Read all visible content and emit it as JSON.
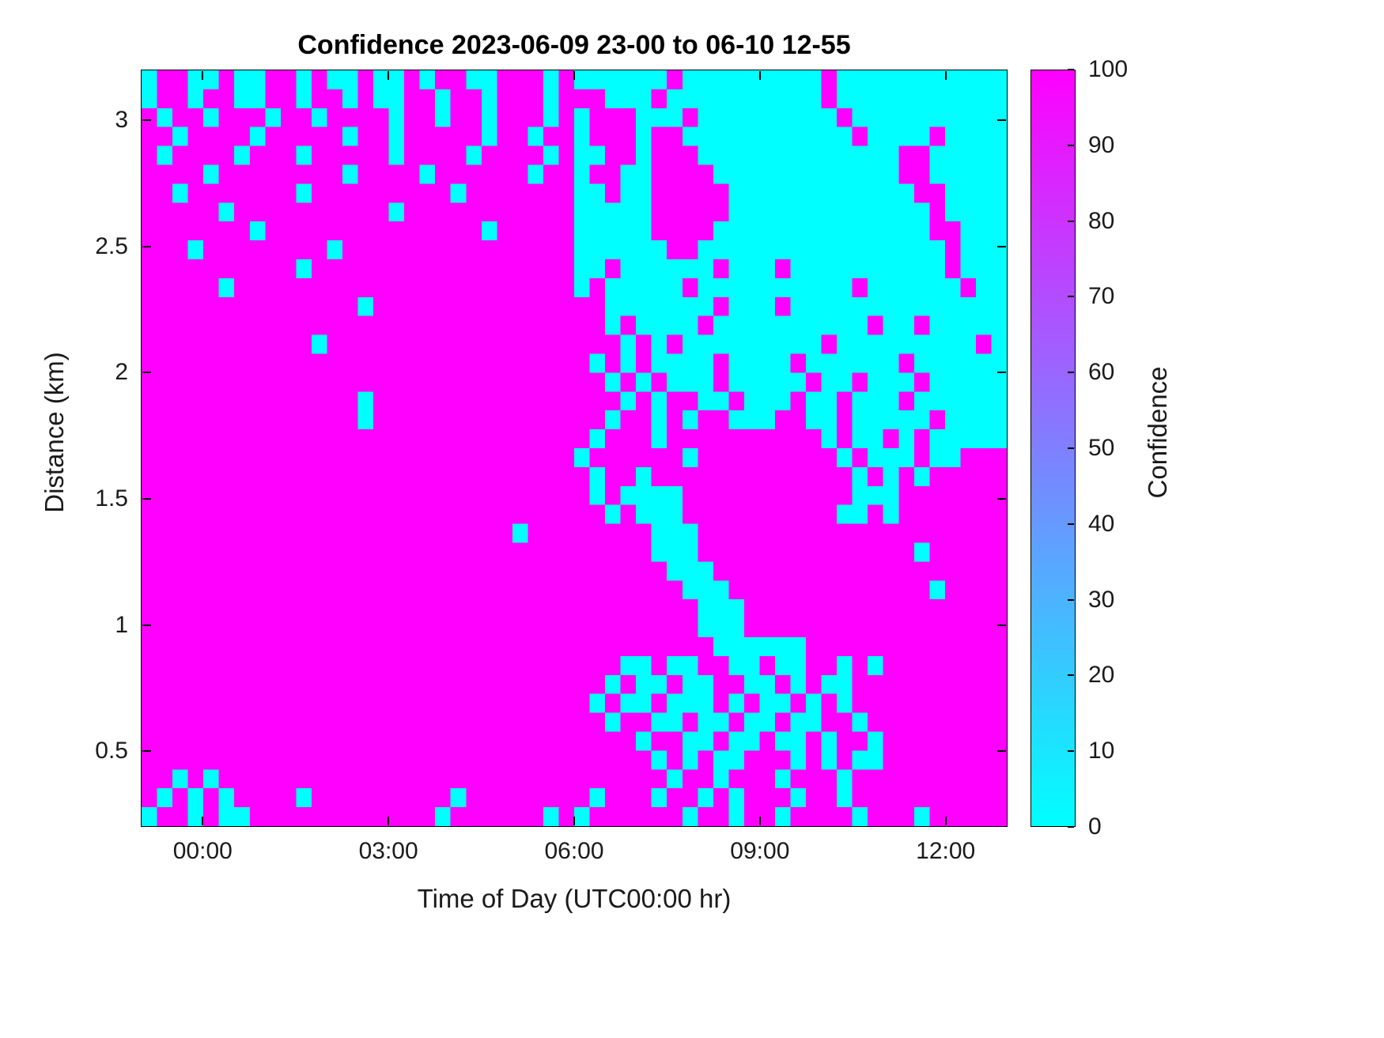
{
  "figure": {
    "background": "#FFFFFF"
  },
  "chart_data": {
    "type": "heatmap",
    "title": "Confidence 2023-06-09 23-00 to 06-10 12-55",
    "xlabel": "Time of Day (UTC00:00 hr)",
    "ylabel": "Distance (km)",
    "x_range_hours": [
      -1,
      13
    ],
    "x_tick_hours": [
      0,
      3,
      6,
      9,
      12
    ],
    "x_tick_labels": [
      "00:00",
      "03:00",
      "06:00",
      "09:00",
      "12:00"
    ],
    "y_range_km": [
      0.2,
      3.2
    ],
    "y_tick_values": [
      0.5,
      1,
      1.5,
      2,
      2.5,
      3
    ],
    "y_tick_labels": [
      "0.5",
      "1",
      "1.5",
      "2",
      "2.5",
      "3"
    ],
    "colorbar": {
      "label": "Confidence",
      "min": 0,
      "max": 100,
      "ticks": [
        0,
        10,
        20,
        30,
        40,
        50,
        60,
        70,
        80,
        90,
        100
      ],
      "colormap": "cool",
      "min_color": "#00FFFF",
      "max_color": "#FF00FF"
    },
    "value_map": {
      "0": 0,
      "1": 100
    },
    "n_cols": 56,
    "n_rows": 40,
    "grid_rows_top_to_bottom": [
      "01100100110100100101100111010000001000000000100000000000",
      "01101100110110100110110111011100010000000000100000000000",
      "10110111011011110110110111010111000100000000010000000000",
      "11011110111110110111110110110111011000000000001000010000",
      "10111101110111110111101111010011011100000000000001100000",
      "11110111111110111101111110110110011110000000000001100000",
      "11011111110111111111011111110010011111000000000000110000",
      "11111011111111110111111111110000011111000000000000010000",
      "11111110111111111111110111110000011110000000000000011000",
      "11101111111101111111111111110000001100000000000000001000",
      "11111111110111111111111111110010000001000100000000001000",
      "11111011111111111111111111110100000100000000001000000100",
      "11111111111111011111111111111100000001000100000000000000",
      "11111111111111111111111111111101000010000000000100100000",
      "11111111111011111111111111111110101000000000100000000010",
      "11111111111111111111111111111010100001000010000001000000",
      "11111111111111111111111111111101010001000001001000100000",
      "11111111111111011111111111111110101100100010010001000000",
      "11111111111111011111111111111101101011000110010000010000",
      "11111111111111111111111111111011101111111111010010100000",
      "11111111111111111111111111110111111011111111101000100111",
      "11111111111111111111111111111011011111111111110101011111",
      "11111111111111111111111111111010000111111111110001111111",
      "11111111111111111111111111111101000111111111100101111111",
      "11111111111111111111111101111111100011111111111111111111",
      "11111111111111111111111111111111100011111111111111011111",
      "11111111111111111111111111111111110001111111111111111111",
      "11111111111111111111111111111111111000111111111111101111",
      "11111111111111111111111111111111111100011111111111111111",
      "11111111111111111111111111111111111100011111111111111111",
      "11111111111111111111111111111111111110000001111111111111",
      "11111111111111111111111111111110010011001001101011111111",
      "11111111111111111111111111111101001001100101001111111111",
      "11111111111111111111111111111010010001010010101111111111",
      "11111111111111111111111111111101100100100100110111111111",
      "11111111111111111111111111111111011001001001011011111111",
      "11111111111111111111111111111111101010011101010011111111",
      "11010111111111111111111111111111110110111011101111111111",
      "10101011110111111111011111111011101101011101101111111111",
      "01101001111111111110111111010111111011011011110111011111"
    ]
  }
}
